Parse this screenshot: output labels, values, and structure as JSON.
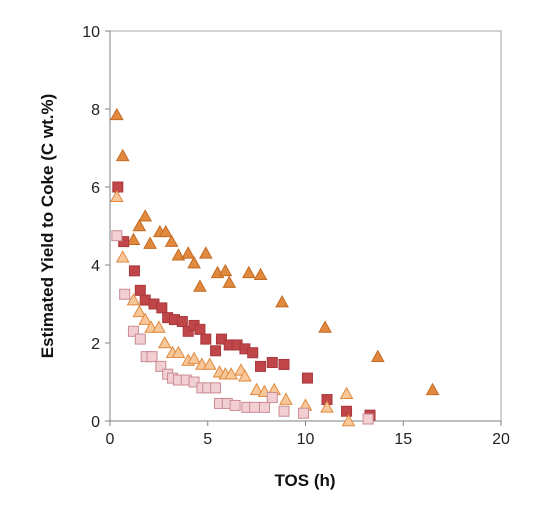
{
  "chart_data": {
    "type": "scatter",
    "title": "",
    "xlabel": "TOS (h)",
    "ylabel": "Estimated Yield to Coke (C wt.%)",
    "xlim": [
      0,
      20
    ],
    "ylim": [
      0,
      10
    ],
    "xticks": [
      0,
      5,
      10,
      15,
      20
    ],
    "yticks": [
      0,
      2,
      4,
      6,
      8,
      10
    ],
    "xtick_labels": [
      "0",
      "5",
      "10",
      "15",
      "20"
    ],
    "ytick_labels": [
      "0",
      "2",
      "4",
      "6",
      "8",
      "10"
    ],
    "grid": false,
    "legend": "none",
    "series": [
      {
        "marker": "triangle",
        "fill": "#e0893f",
        "stroke": "#c46a22",
        "points": [
          [
            0.35,
            7.85
          ],
          [
            0.65,
            6.8
          ],
          [
            1.2,
            4.65
          ],
          [
            1.5,
            5.0
          ],
          [
            1.8,
            5.25
          ],
          [
            2.05,
            4.55
          ],
          [
            2.55,
            4.85
          ],
          [
            2.85,
            4.85
          ],
          [
            3.15,
            4.6
          ],
          [
            3.5,
            4.25
          ],
          [
            4.0,
            4.3
          ],
          [
            4.3,
            4.05
          ],
          [
            4.6,
            3.45
          ],
          [
            4.9,
            4.3
          ],
          [
            5.5,
            3.8
          ],
          [
            5.9,
            3.85
          ],
          [
            6.1,
            3.55
          ],
          [
            7.1,
            3.8
          ],
          [
            7.7,
            3.75
          ],
          [
            8.8,
            3.05
          ],
          [
            11.0,
            2.4
          ],
          [
            13.7,
            1.65
          ],
          [
            16.5,
            0.8
          ]
        ]
      },
      {
        "marker": "square",
        "fill": "#c0464a",
        "stroke": "#a8383c",
        "points": [
          [
            0.4,
            6.0
          ],
          [
            0.7,
            4.6
          ],
          [
            1.25,
            3.85
          ],
          [
            1.55,
            3.35
          ],
          [
            1.8,
            3.1
          ],
          [
            2.25,
            3.0
          ],
          [
            2.65,
            2.9
          ],
          [
            2.95,
            2.65
          ],
          [
            3.3,
            2.6
          ],
          [
            3.7,
            2.55
          ],
          [
            4.0,
            2.3
          ],
          [
            4.3,
            2.45
          ],
          [
            4.6,
            2.35
          ],
          [
            4.9,
            2.1
          ],
          [
            5.4,
            1.8
          ],
          [
            5.7,
            2.1
          ],
          [
            6.1,
            1.95
          ],
          [
            6.5,
            1.95
          ],
          [
            6.9,
            1.85
          ],
          [
            7.3,
            1.75
          ],
          [
            7.7,
            1.4
          ],
          [
            8.3,
            1.5
          ],
          [
            8.9,
            1.45
          ],
          [
            10.1,
            1.1
          ],
          [
            11.1,
            0.55
          ],
          [
            12.1,
            0.25
          ],
          [
            13.3,
            0.15
          ]
        ]
      },
      {
        "marker": "triangle",
        "fill": "#f8c89a",
        "stroke": "#e0893f",
        "points": [
          [
            0.35,
            5.75
          ],
          [
            0.65,
            4.2
          ],
          [
            1.2,
            3.1
          ],
          [
            1.5,
            2.8
          ],
          [
            1.8,
            2.6
          ],
          [
            2.1,
            2.4
          ],
          [
            2.5,
            2.4
          ],
          [
            2.8,
            2.0
          ],
          [
            3.2,
            1.75
          ],
          [
            3.5,
            1.75
          ],
          [
            4.0,
            1.55
          ],
          [
            4.3,
            1.6
          ],
          [
            4.7,
            1.45
          ],
          [
            5.1,
            1.45
          ],
          [
            5.6,
            1.25
          ],
          [
            5.9,
            1.2
          ],
          [
            6.2,
            1.2
          ],
          [
            6.7,
            1.3
          ],
          [
            6.9,
            1.15
          ],
          [
            7.5,
            0.8
          ],
          [
            7.9,
            0.75
          ],
          [
            8.4,
            0.8
          ],
          [
            9.0,
            0.55
          ],
          [
            10.0,
            0.4
          ],
          [
            11.1,
            0.35
          ],
          [
            12.1,
            0.7
          ],
          [
            12.2,
            0.0
          ]
        ]
      },
      {
        "marker": "square",
        "fill": "#f2cfd3",
        "stroke": "#c98b94",
        "points": [
          [
            0.35,
            4.75
          ],
          [
            0.75,
            3.25
          ],
          [
            1.2,
            2.3
          ],
          [
            1.55,
            2.1
          ],
          [
            1.85,
            1.65
          ],
          [
            2.15,
            1.65
          ],
          [
            2.6,
            1.4
          ],
          [
            2.95,
            1.2
          ],
          [
            3.2,
            1.1
          ],
          [
            3.5,
            1.05
          ],
          [
            3.9,
            1.05
          ],
          [
            4.3,
            1.0
          ],
          [
            4.7,
            0.85
          ],
          [
            5.0,
            0.85
          ],
          [
            5.4,
            0.85
          ],
          [
            5.6,
            0.45
          ],
          [
            6.0,
            0.45
          ],
          [
            6.4,
            0.4
          ],
          [
            7.0,
            0.35
          ],
          [
            7.4,
            0.35
          ],
          [
            7.9,
            0.35
          ],
          [
            8.3,
            0.6
          ],
          [
            8.9,
            0.25
          ],
          [
            9.9,
            0.2
          ],
          [
            13.2,
            0.05
          ]
        ]
      }
    ]
  }
}
